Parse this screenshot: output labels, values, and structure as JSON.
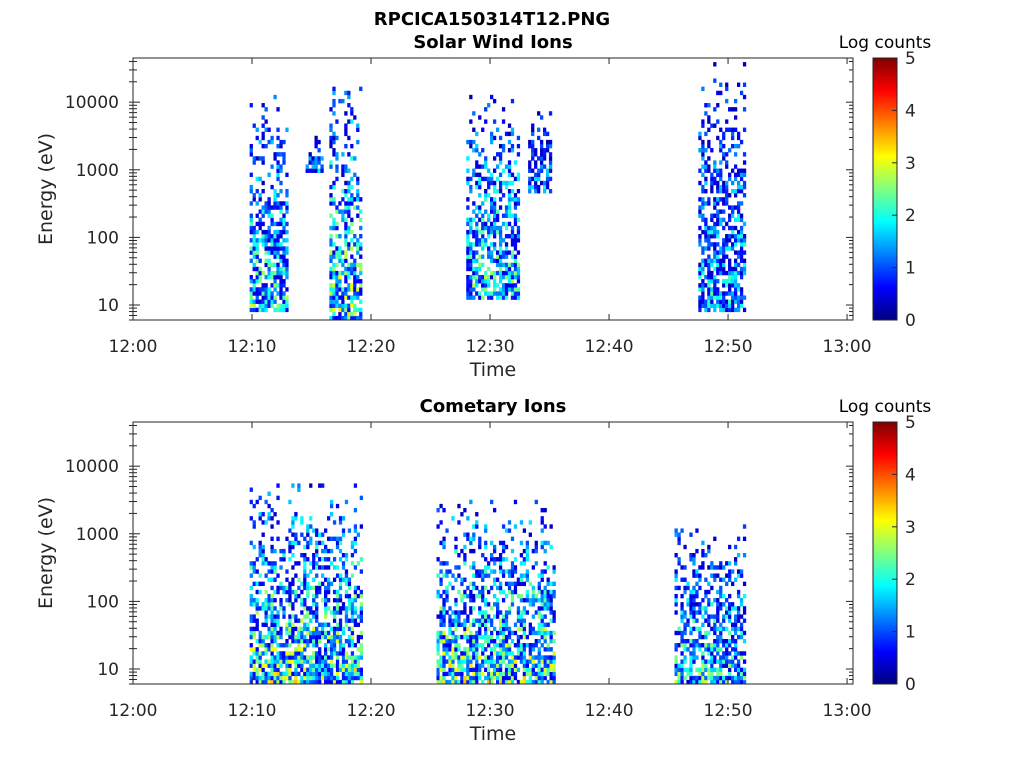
{
  "figure_title": "RPCICA150314T12.PNG",
  "chart_data": [
    {
      "type": "heatmap",
      "title": "Solar Wind Ions",
      "xlabel": "Time",
      "ylabel": "Energy (eV)",
      "colorbar_label": "Log counts",
      "x_ticks": [
        "12:00",
        "12:10",
        "12:20",
        "12:30",
        "12:40",
        "12:50",
        "13:00"
      ],
      "xlim_minutes": [
        0,
        60.5
      ],
      "y_ticks": [
        10,
        100,
        1000,
        10000
      ],
      "ylim": [
        6,
        45000
      ],
      "yscale": "log",
      "colorbar_range": [
        0,
        5
      ],
      "colorbar_ticks": [
        0,
        1,
        2,
        3,
        4,
        5
      ],
      "colormap": "jet",
      "bursts": [
        {
          "t_start": 9.8,
          "t_end": 13.0,
          "e_min": 7,
          "e_max": 12000,
          "peak_log_counts": 3.0
        },
        {
          "t_start": 14.5,
          "t_end": 15.8,
          "e_min": 800,
          "e_max": 3000,
          "peak_log_counts": 2.0
        },
        {
          "t_start": 16.5,
          "t_end": 19.2,
          "e_min": 6,
          "e_max": 15000,
          "peak_log_counts": 3.5
        },
        {
          "t_start": 28.0,
          "t_end": 32.3,
          "e_min": 12,
          "e_max": 12000,
          "peak_log_counts": 3.0
        },
        {
          "t_start": 33.2,
          "t_end": 35.0,
          "e_min": 400,
          "e_max": 8000,
          "peak_log_counts": 2.0
        },
        {
          "t_start": 47.5,
          "t_end": 51.3,
          "e_min": 7,
          "e_max": 35000,
          "peak_log_counts": 2.5
        }
      ]
    },
    {
      "type": "heatmap",
      "title": "Cometary Ions",
      "xlabel": "Time",
      "ylabel": "Energy (eV)",
      "colorbar_label": "Log counts",
      "x_ticks": [
        "12:00",
        "12:10",
        "12:20",
        "12:30",
        "12:40",
        "12:50",
        "13:00"
      ],
      "xlim_minutes": [
        0,
        60.5
      ],
      "y_ticks": [
        10,
        100,
        1000,
        10000
      ],
      "ylim": [
        6,
        45000
      ],
      "yscale": "log",
      "colorbar_range": [
        0,
        5
      ],
      "colorbar_ticks": [
        0,
        1,
        2,
        3,
        4,
        5
      ],
      "colormap": "jet",
      "bursts": [
        {
          "t_start": 9.8,
          "t_end": 19.3,
          "e_min": 6,
          "e_max": 5000,
          "peak_log_counts": 3.5
        },
        {
          "t_start": 25.5,
          "t_end": 35.3,
          "e_min": 6,
          "e_max": 3000,
          "peak_log_counts": 3.5
        },
        {
          "t_start": 45.5,
          "t_end": 51.5,
          "e_min": 6,
          "e_max": 1200,
          "peak_log_counts": 3.0
        }
      ]
    }
  ]
}
